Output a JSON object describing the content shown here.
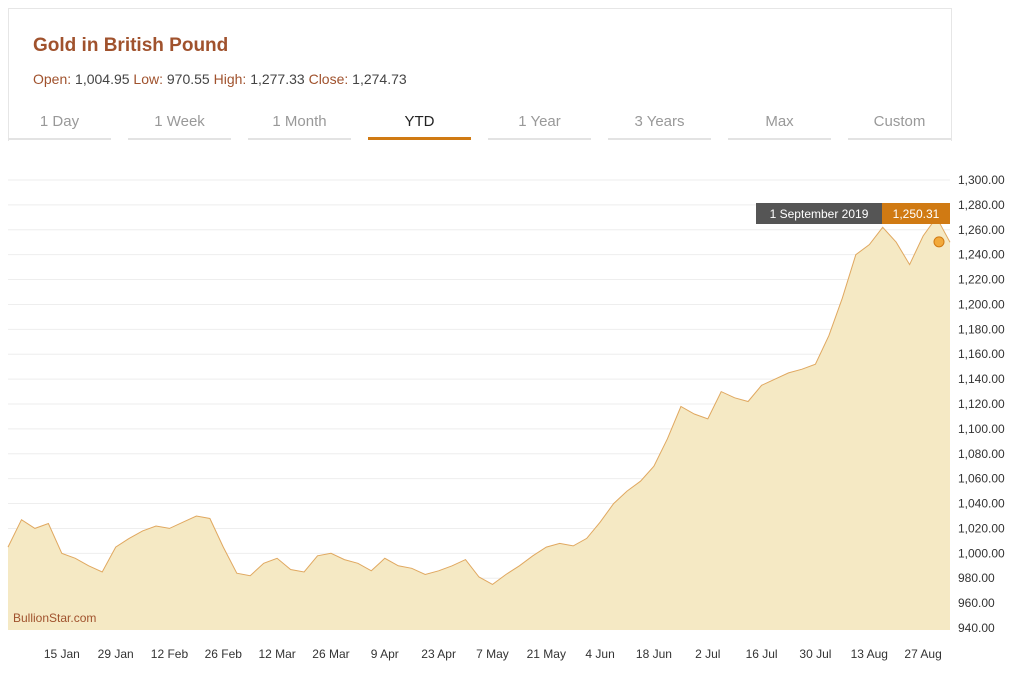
{
  "header": {
    "title": "Gold in British Pound",
    "open_label": "Open:",
    "open_value": "1,004.95",
    "low_label": "Low:",
    "low_value": "970.55",
    "high_label": "High:",
    "high_value": "1,277.33",
    "close_label": "Close:",
    "close_value": "1,274.73"
  },
  "tabs": [
    {
      "label": "1 Day"
    },
    {
      "label": "1 Week"
    },
    {
      "label": "1 Month"
    },
    {
      "label": "YTD",
      "active": true
    },
    {
      "label": "1 Year"
    },
    {
      "label": "3 Years"
    },
    {
      "label": "Max"
    },
    {
      "label": "Custom"
    }
  ],
  "watermark": "BullionStar.com",
  "tooltip": {
    "date": "1 September 2019",
    "value": "1,250.31"
  },
  "colors": {
    "accent": "#d07a13",
    "title": "#a0522d",
    "area_fill": "#f5e9c4",
    "line": "#e0a860",
    "marker": "#f2a93b",
    "tooltip_dark": "#555555"
  },
  "chart_data": {
    "type": "area",
    "title": "Gold in British Pound",
    "ylim": [
      940,
      1300
    ],
    "yticks": [
      {
        "v": 940,
        "label": "940.00"
      },
      {
        "v": 960,
        "label": "960.00"
      },
      {
        "v": 980,
        "label": "980.00"
      },
      {
        "v": 1000,
        "label": "1,000.00"
      },
      {
        "v": 1020,
        "label": "1,020.00"
      },
      {
        "v": 1040,
        "label": "1,040.00"
      },
      {
        "v": 1060,
        "label": "1,060.00"
      },
      {
        "v": 1080,
        "label": "1,080.00"
      },
      {
        "v": 1100,
        "label": "1,100.00"
      },
      {
        "v": 1120,
        "label": "1,120.00"
      },
      {
        "v": 1140,
        "label": "1,140.00"
      },
      {
        "v": 1160,
        "label": "1,160.00"
      },
      {
        "v": 1180,
        "label": "1,180.00"
      },
      {
        "v": 1200,
        "label": "1,200.00"
      },
      {
        "v": 1220,
        "label": "1,220.00"
      },
      {
        "v": 1240,
        "label": "1,240.00"
      },
      {
        "v": 1260,
        "label": "1,260.00"
      },
      {
        "v": 1280,
        "label": "1,280.00"
      },
      {
        "v": 1300,
        "label": "1,300.00"
      }
    ],
    "xticks": [
      "15 Jan",
      "29 Jan",
      "12 Feb",
      "26 Feb",
      "12 Mar",
      "26 Mar",
      "9 Apr",
      "23 Apr",
      "7 May",
      "21 May",
      "4 Jun",
      "18 Jun",
      "2 Jul",
      "16 Jul",
      "30 Jul",
      "13 Aug",
      "27 Aug"
    ],
    "grid": true,
    "x": [
      "1 Jan",
      "4 Jan",
      "8 Jan",
      "11 Jan",
      "15 Jan",
      "18 Jan",
      "22 Jan",
      "25 Jan",
      "29 Jan",
      "1 Feb",
      "5 Feb",
      "8 Feb",
      "12 Feb",
      "15 Feb",
      "19 Feb",
      "22 Feb",
      "26 Feb",
      "1 Mar",
      "5 Mar",
      "8 Mar",
      "12 Mar",
      "15 Mar",
      "19 Mar",
      "22 Mar",
      "26 Mar",
      "29 Mar",
      "2 Apr",
      "5 Apr",
      "9 Apr",
      "12 Apr",
      "16 Apr",
      "19 Apr",
      "23 Apr",
      "26 Apr",
      "30 Apr",
      "3 May",
      "7 May",
      "10 May",
      "14 May",
      "17 May",
      "21 May",
      "24 May",
      "28 May",
      "31 May",
      "4 Jun",
      "7 Jun",
      "11 Jun",
      "14 Jun",
      "18 Jun",
      "21 Jun",
      "25 Jun",
      "28 Jun",
      "2 Jul",
      "5 Jul",
      "9 Jul",
      "12 Jul",
      "16 Jul",
      "19 Jul",
      "23 Jul",
      "26 Jul",
      "30 Jul",
      "2 Aug",
      "6 Aug",
      "9 Aug",
      "13 Aug",
      "16 Aug",
      "20 Aug",
      "23 Aug",
      "27 Aug",
      "30 Aug",
      "1 Sep"
    ],
    "series": [
      {
        "values": [
          1005,
          1027,
          1020,
          1024,
          1000,
          996,
          990,
          985,
          1005,
          1012,
          1018,
          1022,
          1020,
          1025,
          1030,
          1028,
          1005,
          984,
          982,
          992,
          996,
          987,
          985,
          998,
          1000,
          995,
          992,
          986,
          996,
          990,
          988,
          983,
          986,
          990,
          995,
          981,
          975,
          983,
          990,
          998,
          1005,
          1008,
          1006,
          1012,
          1025,
          1040,
          1050,
          1058,
          1070,
          1092,
          1118,
          1112,
          1108,
          1130,
          1125,
          1122,
          1135,
          1140,
          1145,
          1148,
          1152,
          1175,
          1205,
          1240,
          1248,
          1262,
          1250,
          1232,
          1255,
          1270,
          1250
        ]
      }
    ],
    "marker": {
      "x": "1 Sep",
      "y": 1250.31
    }
  }
}
